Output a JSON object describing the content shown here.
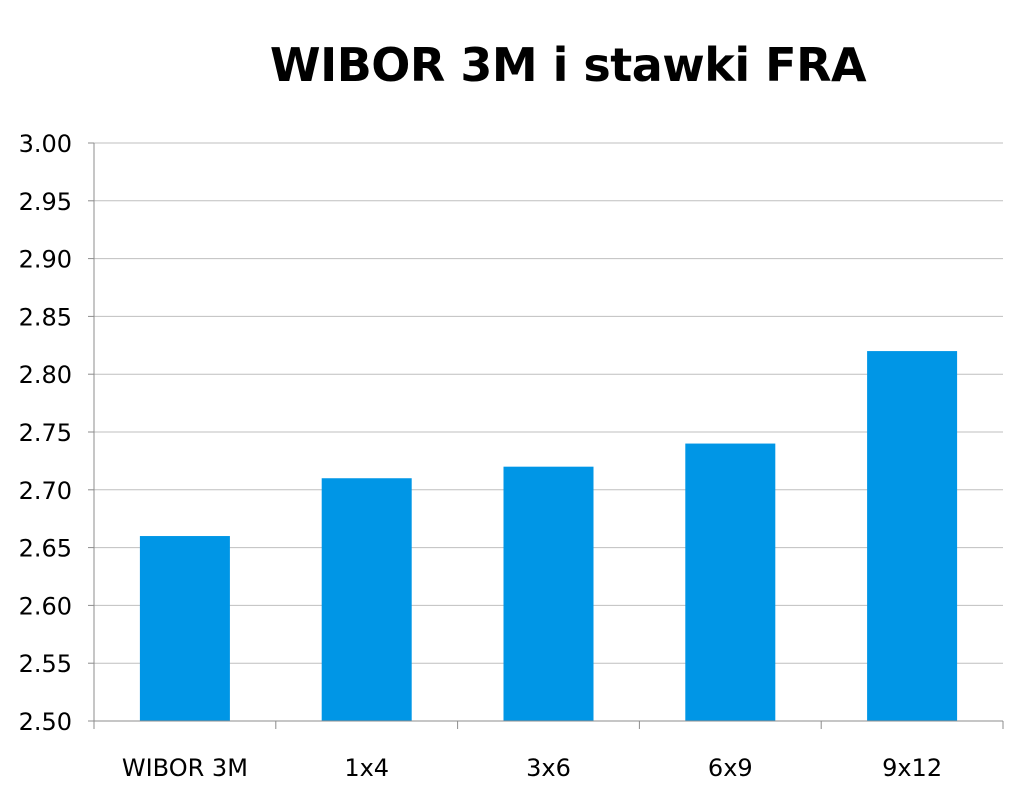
{
  "chart_data": {
    "type": "bar",
    "title": "WIBOR 3M i stawki FRA",
    "xlabel": "",
    "ylabel": "",
    "categories": [
      "WIBOR 3M",
      "1x4",
      "3x6",
      "6x9",
      "9x12"
    ],
    "values": [
      2.66,
      2.71,
      2.72,
      2.74,
      2.82
    ],
    "ylim": [
      2.5,
      3.0
    ],
    "yticks": [
      "2.50",
      "2.55",
      "2.60",
      "2.65",
      "2.70",
      "2.75",
      "2.80",
      "2.85",
      "2.90",
      "2.95",
      "3.00"
    ],
    "grid": true,
    "legend": "none",
    "bar_color": "#0096E6",
    "grid_color": "#BFBFBF"
  }
}
